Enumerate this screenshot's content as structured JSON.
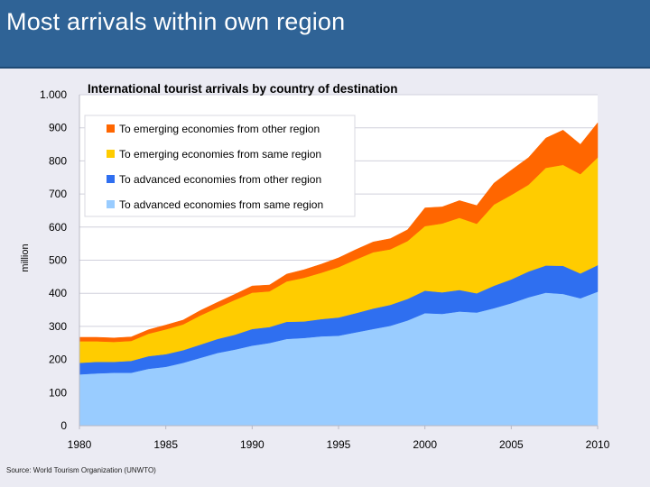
{
  "slide": {
    "title": "Most arrivals within own region",
    "source": "Source: World Tourism Organization (UNWTO)"
  },
  "chart_data": {
    "type": "area",
    "stacked": true,
    "title": "International tourist arrivals by country of destination",
    "xlabel": "",
    "ylabel": "million",
    "ylim": [
      0,
      1000
    ],
    "yticks": [
      0,
      100,
      200,
      300,
      400,
      500,
      600,
      700,
      800,
      900,
      1000
    ],
    "ytick_labels": [
      "0",
      "100",
      "200",
      "300",
      "400",
      "500",
      "600",
      "700",
      "800",
      "900",
      "1.000"
    ],
    "xticks": [
      1980,
      1985,
      1990,
      1995,
      2000,
      2005,
      2010
    ],
    "xtick_labels": [
      "1980",
      "1985",
      "1990",
      "1995",
      "2000",
      "2005",
      "2010"
    ],
    "grid": true,
    "legend_position": "top-left",
    "x": [
      1980,
      1981,
      1982,
      1983,
      1984,
      1985,
      1986,
      1987,
      1988,
      1989,
      1990,
      1991,
      1992,
      1993,
      1994,
      1995,
      1996,
      1997,
      1998,
      1999,
      2000,
      2001,
      2002,
      2003,
      2004,
      2005,
      2006,
      2007,
      2008,
      2009,
      2010
    ],
    "series": [
      {
        "name": "To advanced economies from same region",
        "color": "#99ccff",
        "values": [
          155,
          158,
          160,
          160,
          172,
          178,
          190,
          205,
          220,
          230,
          242,
          250,
          262,
          265,
          270,
          272,
          282,
          292,
          302,
          318,
          340,
          338,
          345,
          342,
          355,
          370,
          388,
          402,
          398,
          385,
          405
        ]
      },
      {
        "name": "To advanced economies from other region",
        "color": "#2f6ff0",
        "values": [
          35,
          35,
          33,
          36,
          38,
          38,
          38,
          40,
          42,
          45,
          50,
          48,
          52,
          50,
          52,
          55,
          58,
          62,
          63,
          65,
          68,
          65,
          65,
          58,
          68,
          72,
          78,
          82,
          85,
          75,
          80
        ]
      },
      {
        "name": "To emerging economies from same region",
        "color": "#ffcc00",
        "values": [
          65,
          62,
          60,
          60,
          68,
          75,
          78,
          88,
          95,
          105,
          110,
          108,
          122,
          132,
          140,
          152,
          162,
          170,
          168,
          175,
          195,
          208,
          218,
          210,
          245,
          255,
          262,
          295,
          305,
          300,
          325
        ]
      },
      {
        "name": "To emerging economies from other region",
        "color": "#ff6600",
        "values": [
          12,
          12,
          12,
          12,
          12,
          13,
          13,
          15,
          16,
          17,
          20,
          19,
          22,
          24,
          26,
          28,
          30,
          31,
          32,
          34,
          55,
          50,
          52,
          55,
          65,
          75,
          82,
          90,
          105,
          90,
          105
        ]
      }
    ]
  }
}
